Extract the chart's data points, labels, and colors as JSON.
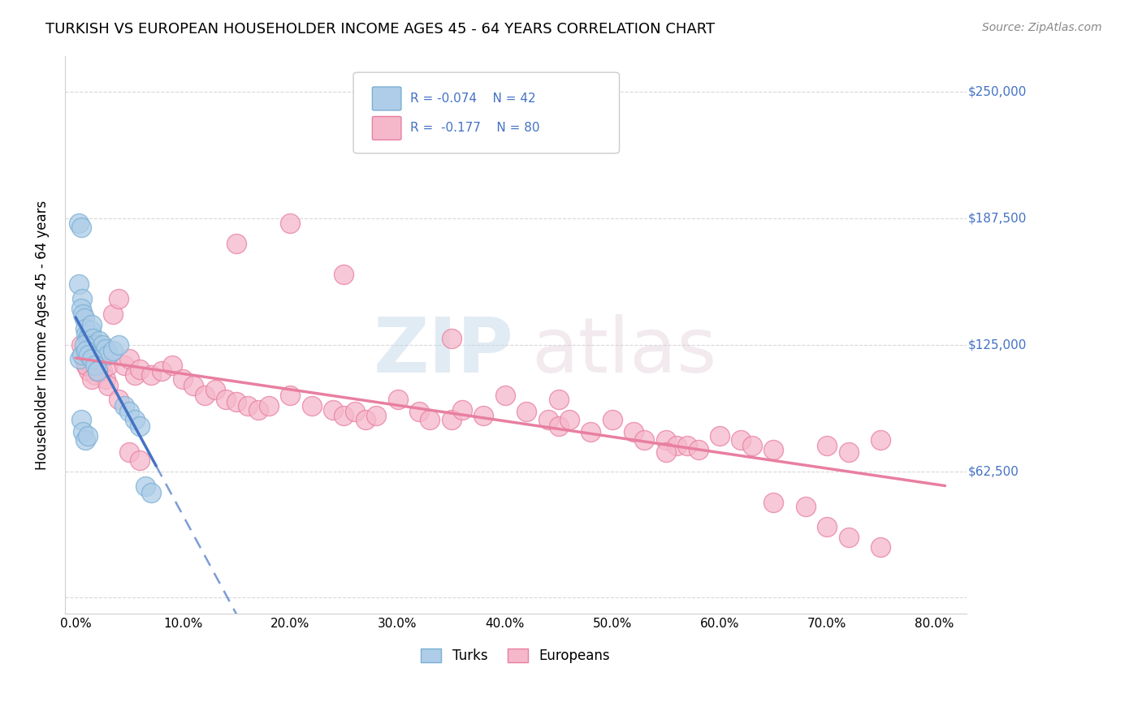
{
  "title": "TURKISH VS EUROPEAN HOUSEHOLDER INCOME AGES 45 - 64 YEARS CORRELATION CHART",
  "source": "Source: ZipAtlas.com",
  "xlabel_ticks": [
    "0.0%",
    "10.0%",
    "20.0%",
    "30.0%",
    "40.0%",
    "50.0%",
    "60.0%",
    "70.0%",
    "80.0%"
  ],
  "xlabel_vals": [
    0,
    10,
    20,
    30,
    40,
    50,
    60,
    70,
    80
  ],
  "ylabel_ticks": [
    0,
    62500,
    125000,
    187500,
    250000
  ],
  "ylabel_labels": [
    "",
    "$62,500",
    "$125,000",
    "$187,500",
    "$250,000"
  ],
  "xlim": [
    -1,
    83
  ],
  "ylim": [
    -8000,
    268000
  ],
  "turks_R": -0.074,
  "turks_N": 42,
  "europeans_R": -0.177,
  "europeans_N": 80,
  "turks_color": "#aecde8",
  "turks_edge_color": "#7aafd4",
  "europeans_color": "#f5b8cb",
  "europeans_edge_color": "#e87fa0",
  "trend_turks_color": "#4472c4",
  "trend_europeans_color": "#e87fa0",
  "turks_x": [
    0.3,
    0.5,
    0.3,
    0.6,
    0.5,
    0.7,
    0.8,
    0.9,
    1.0,
    1.1,
    1.2,
    1.3,
    1.4,
    1.5,
    1.6,
    1.7,
    1.8,
    2.0,
    2.2,
    2.5,
    2.8,
    3.0,
    3.5,
    4.0,
    0.4,
    0.6,
    0.8,
    1.0,
    1.2,
    1.5,
    1.8,
    2.0,
    0.5,
    0.7,
    0.9,
    1.1,
    4.5,
    5.0,
    5.5,
    6.0,
    6.5,
    7.0
  ],
  "turks_y": [
    185000,
    183000,
    155000,
    148000,
    143000,
    140000,
    138000,
    133000,
    130000,
    128000,
    127000,
    130000,
    132000,
    135000,
    128000,
    125000,
    125000,
    125000,
    127000,
    125000,
    123000,
    120000,
    122000,
    125000,
    118000,
    120000,
    125000,
    122000,
    120000,
    118000,
    115000,
    112000,
    88000,
    82000,
    78000,
    80000,
    95000,
    92000,
    88000,
    85000,
    55000,
    52000
  ],
  "europeans_x": [
    0.5,
    0.8,
    1.0,
    1.2,
    1.5,
    1.8,
    2.0,
    2.2,
    2.5,
    2.8,
    3.0,
    3.5,
    4.0,
    4.5,
    5.0,
    5.5,
    6.0,
    7.0,
    8.0,
    9.0,
    10.0,
    11.0,
    12.0,
    13.0,
    14.0,
    15.0,
    16.0,
    17.0,
    18.0,
    20.0,
    22.0,
    24.0,
    25.0,
    26.0,
    27.0,
    28.0,
    30.0,
    32.0,
    33.0,
    35.0,
    36.0,
    38.0,
    40.0,
    42.0,
    44.0,
    45.0,
    46.0,
    48.0,
    50.0,
    52.0,
    53.0,
    55.0,
    56.0,
    57.0,
    58.0,
    60.0,
    62.0,
    63.0,
    65.0,
    70.0,
    72.0,
    75.0,
    1.0,
    1.5,
    2.0,
    3.0,
    4.0,
    5.0,
    6.0,
    15.0,
    20.0,
    25.0,
    35.0,
    45.0,
    55.0,
    65.0,
    70.0,
    75.0,
    72.0,
    68.0
  ],
  "europeans_y": [
    125000,
    118000,
    115000,
    112000,
    115000,
    110000,
    115000,
    113000,
    112000,
    108000,
    115000,
    140000,
    148000,
    115000,
    118000,
    110000,
    113000,
    110000,
    112000,
    115000,
    108000,
    105000,
    100000,
    103000,
    98000,
    97000,
    95000,
    93000,
    95000,
    100000,
    95000,
    93000,
    90000,
    92000,
    88000,
    90000,
    98000,
    92000,
    88000,
    88000,
    93000,
    90000,
    100000,
    92000,
    88000,
    85000,
    88000,
    82000,
    88000,
    82000,
    78000,
    78000,
    75000,
    75000,
    73000,
    80000,
    78000,
    75000,
    73000,
    75000,
    72000,
    78000,
    115000,
    108000,
    112000,
    105000,
    98000,
    72000,
    68000,
    175000,
    185000,
    160000,
    128000,
    98000,
    72000,
    47000,
    35000,
    25000,
    30000,
    45000
  ]
}
